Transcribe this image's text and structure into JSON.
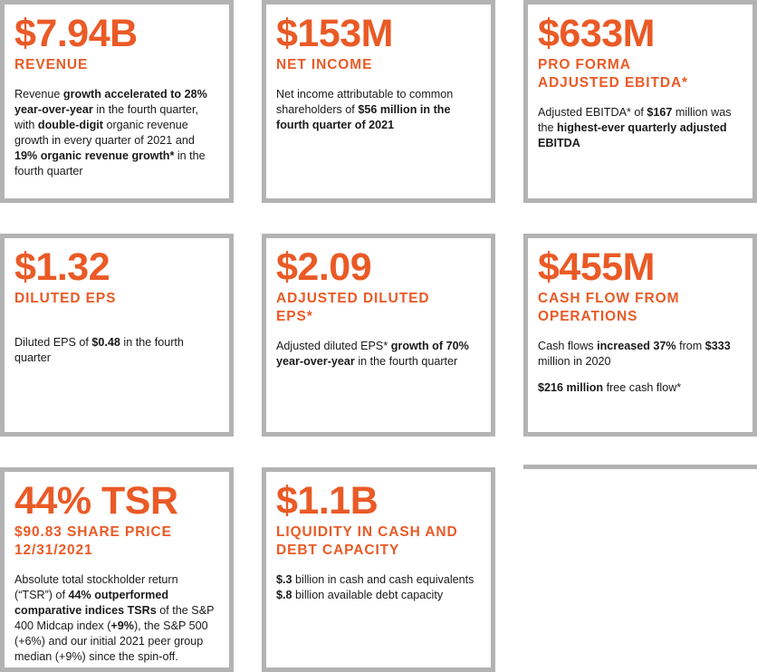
{
  "cards": [
    {
      "value": "$7.94B",
      "label_lines": [
        "REVENUE"
      ],
      "body": [
        {
          "t": "Revenue ",
          "b": false
        },
        {
          "t": "growth accelerated to 28% year-over-year",
          "b": true
        },
        {
          "t": " in the fourth quarter, with ",
          "b": false
        },
        {
          "t": "double-digit",
          "b": true
        },
        {
          "t": " organic revenue growth in every quarter of 2021 and ",
          "b": false
        },
        {
          "t": "19% organic revenue growth*",
          "b": true
        },
        {
          "t": " in the fourth quarter",
          "b": false
        }
      ]
    },
    {
      "value": "$153M",
      "label_lines": [
        "NET INCOME"
      ],
      "body": [
        {
          "t": "Net income attributable to common shareholders of ",
          "b": false
        },
        {
          "t": "$56 million in the fourth quarter of 2021",
          "b": true
        }
      ]
    },
    {
      "value": "$633M",
      "label_lines": [
        "PRO FORMA",
        "ADJUSTED EBITDA*"
      ],
      "body": [
        {
          "t": "Adjusted EBITDA* of ",
          "b": false
        },
        {
          "t": "$167",
          "b": true
        },
        {
          "t": " million was the ",
          "b": false
        },
        {
          "t": "highest-ever quarterly adjusted EBITDA",
          "b": true
        }
      ]
    },
    {
      "value": "$1.32",
      "label_lines": [
        "DILUTED EPS"
      ],
      "body": [
        {
          "t": "Diluted EPS of ",
          "b": false
        },
        {
          "t": "$0.48",
          "b": true
        },
        {
          "t": " in the fourth quarter",
          "b": false
        }
      ]
    },
    {
      "value": "$2.09",
      "label_lines": [
        "ADJUSTED DILUTED",
        "EPS*"
      ],
      "body": [
        {
          "t": "Adjusted diluted EPS* ",
          "b": false
        },
        {
          "t": "growth of 70% year-over-year",
          "b": true
        },
        {
          "t": " in the fourth quarter",
          "b": false
        }
      ]
    },
    {
      "value": "$455M",
      "label_lines": [
        "CASH FLOW FROM",
        "OPERATIONS"
      ],
      "body": [
        {
          "t": "Cash flows ",
          "b": false
        },
        {
          "t": "increased 37%",
          "b": true
        },
        {
          "t": " from ",
          "b": false
        },
        {
          "t": "$333",
          "b": true
        },
        {
          "t": " million in 2020",
          "b": false
        }
      ],
      "body2": [
        {
          "t": "$216 million",
          "b": true
        },
        {
          "t": " free cash flow*",
          "b": false
        }
      ]
    },
    {
      "value": "44% TSR",
      "label_lines": [
        "$90.83 SHARE PRICE",
        "12/31/2021"
      ],
      "body": [
        {
          "t": "Absolute total stockholder return (“TSR”) of ",
          "b": false
        },
        {
          "t": "44%",
          "b": true
        },
        {
          "t": " ",
          "b": false
        },
        {
          "t": "outperformed comparative indices TSRs",
          "b": true
        },
        {
          "t": " of the S&P 400 Midcap index (",
          "b": false
        },
        {
          "t": "+9%",
          "b": true
        },
        {
          "t": "), the S&P 500 (+6%) and our initial 2021 peer group median (+9%) since the spin-off.",
          "b": false
        }
      ]
    },
    {
      "value": "$1.1B",
      "label_lines": [
        "LIQUIDITY IN CASH AND",
        "DEBT CAPACITY"
      ],
      "body": [
        {
          "t": "$.3",
          "b": true
        },
        {
          "t": " billion in cash and cash equivalents",
          "b": false
        }
      ],
      "body2": [
        {
          "t": "$.8",
          "b": true
        },
        {
          "t": " billion available debt capacity",
          "b": false
        }
      ]
    }
  ]
}
